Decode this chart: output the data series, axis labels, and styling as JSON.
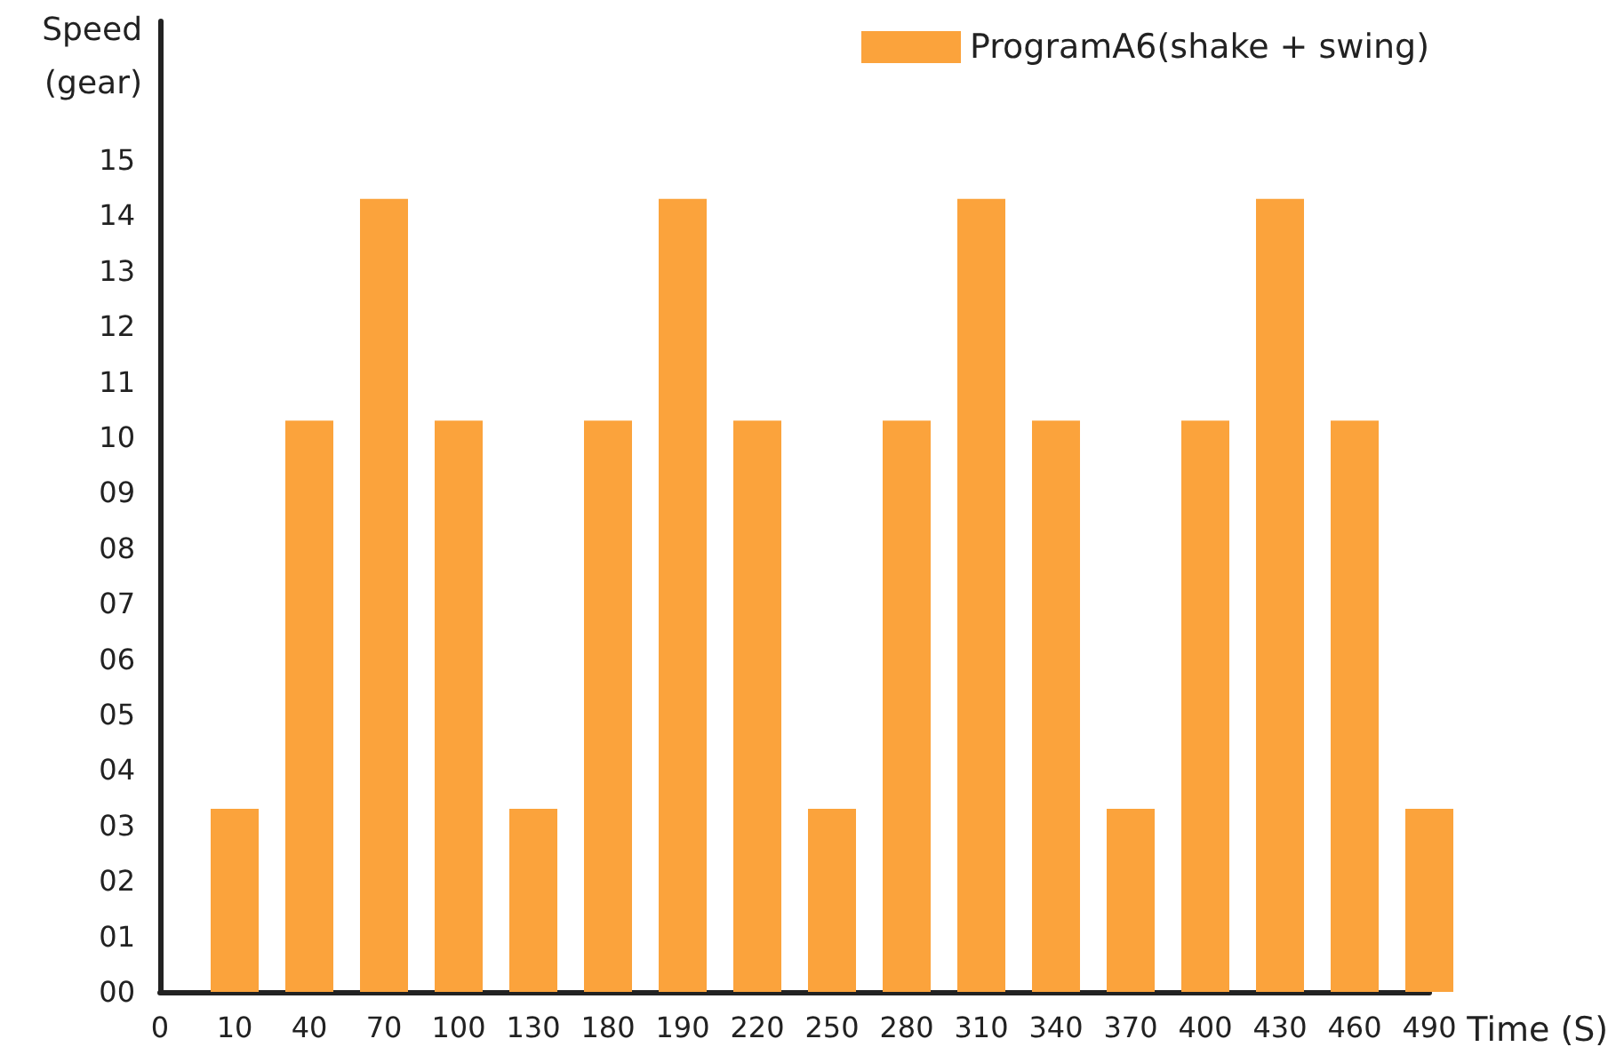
{
  "chart_data": {
    "type": "bar",
    "xlabel": "Time (S)",
    "ylabel": "Speed\n(gear)",
    "categories": [
      "0",
      "10",
      "40",
      "70",
      "100",
      "130",
      "180",
      "190",
      "220",
      "250",
      "280",
      "310",
      "340",
      "370",
      "400",
      "430",
      "460",
      "490"
    ],
    "series": [
      {
        "name": "ProgramA6(shake + swing)",
        "color": "#fba33c",
        "values": [
          null,
          3.3,
          10.3,
          14.3,
          10.3,
          3.3,
          10.3,
          14.3,
          10.3,
          3.3,
          10.3,
          14.3,
          10.3,
          3.3,
          10.3,
          14.3,
          10.3,
          3.3
        ]
      }
    ],
    "ylim": [
      0,
      17.5
    ],
    "yticks": [
      {
        "value": 0,
        "label": "00"
      },
      {
        "value": 1,
        "label": "01"
      },
      {
        "value": 2,
        "label": "02"
      },
      {
        "value": 3,
        "label": "03"
      },
      {
        "value": 4,
        "label": "04"
      },
      {
        "value": 5,
        "label": "05"
      },
      {
        "value": 6,
        "label": "06"
      },
      {
        "value": 7,
        "label": "07"
      },
      {
        "value": 8,
        "label": "08"
      },
      {
        "value": 9,
        "label": "09"
      },
      10,
      11,
      12,
      13,
      14,
      15
    ],
    "grid": false,
    "legend": "top right"
  }
}
